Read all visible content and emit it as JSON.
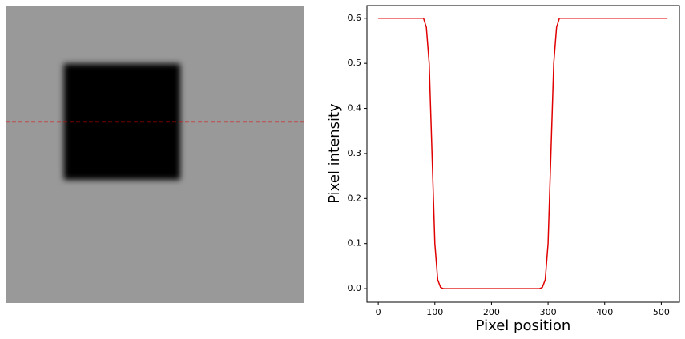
{
  "chart_data": [
    {
      "type": "image",
      "xlim": [
        0,
        512
      ],
      "ylim": [
        0,
        512
      ],
      "background": "#999999",
      "square_color": "#000000",
      "square": {
        "x": [
          100,
          300
        ],
        "y": [
          100,
          300
        ]
      },
      "blur": 5,
      "row": 200,
      "row_color": "#e00000"
    },
    {
      "type": "line",
      "xlabel": "Pixel position",
      "ylabel": "Pixel intensity",
      "color": "#e00000",
      "x": [
        0,
        80,
        85,
        90,
        95,
        100,
        105,
        110,
        115,
        285,
        290,
        295,
        300,
        305,
        310,
        315,
        320,
        511
      ],
      "values": [
        0.6,
        0.6,
        0.58,
        0.5,
        0.3,
        0.1,
        0.02,
        0.003,
        0,
        0,
        0.003,
        0.02,
        0.1,
        0.3,
        0.5,
        0.58,
        0.6,
        0.6
      ],
      "xlim": [
        -20,
        532
      ],
      "ylim": [
        -0.03,
        0.628
      ],
      "xticks": [
        0,
        100,
        200,
        300,
        400,
        500
      ],
      "yticks": [
        {
          "value": 0,
          "label": "0.0"
        },
        {
          "value": 0.1,
          "label": "0.1"
        },
        {
          "value": 0.2,
          "label": "0.2"
        },
        {
          "value": 0.3,
          "label": "0.3"
        },
        {
          "value": 0.4,
          "label": "0.4"
        },
        {
          "value": 0.5,
          "label": "0.5"
        },
        {
          "value": 0.6,
          "label": "0.6"
        }
      ]
    }
  ]
}
